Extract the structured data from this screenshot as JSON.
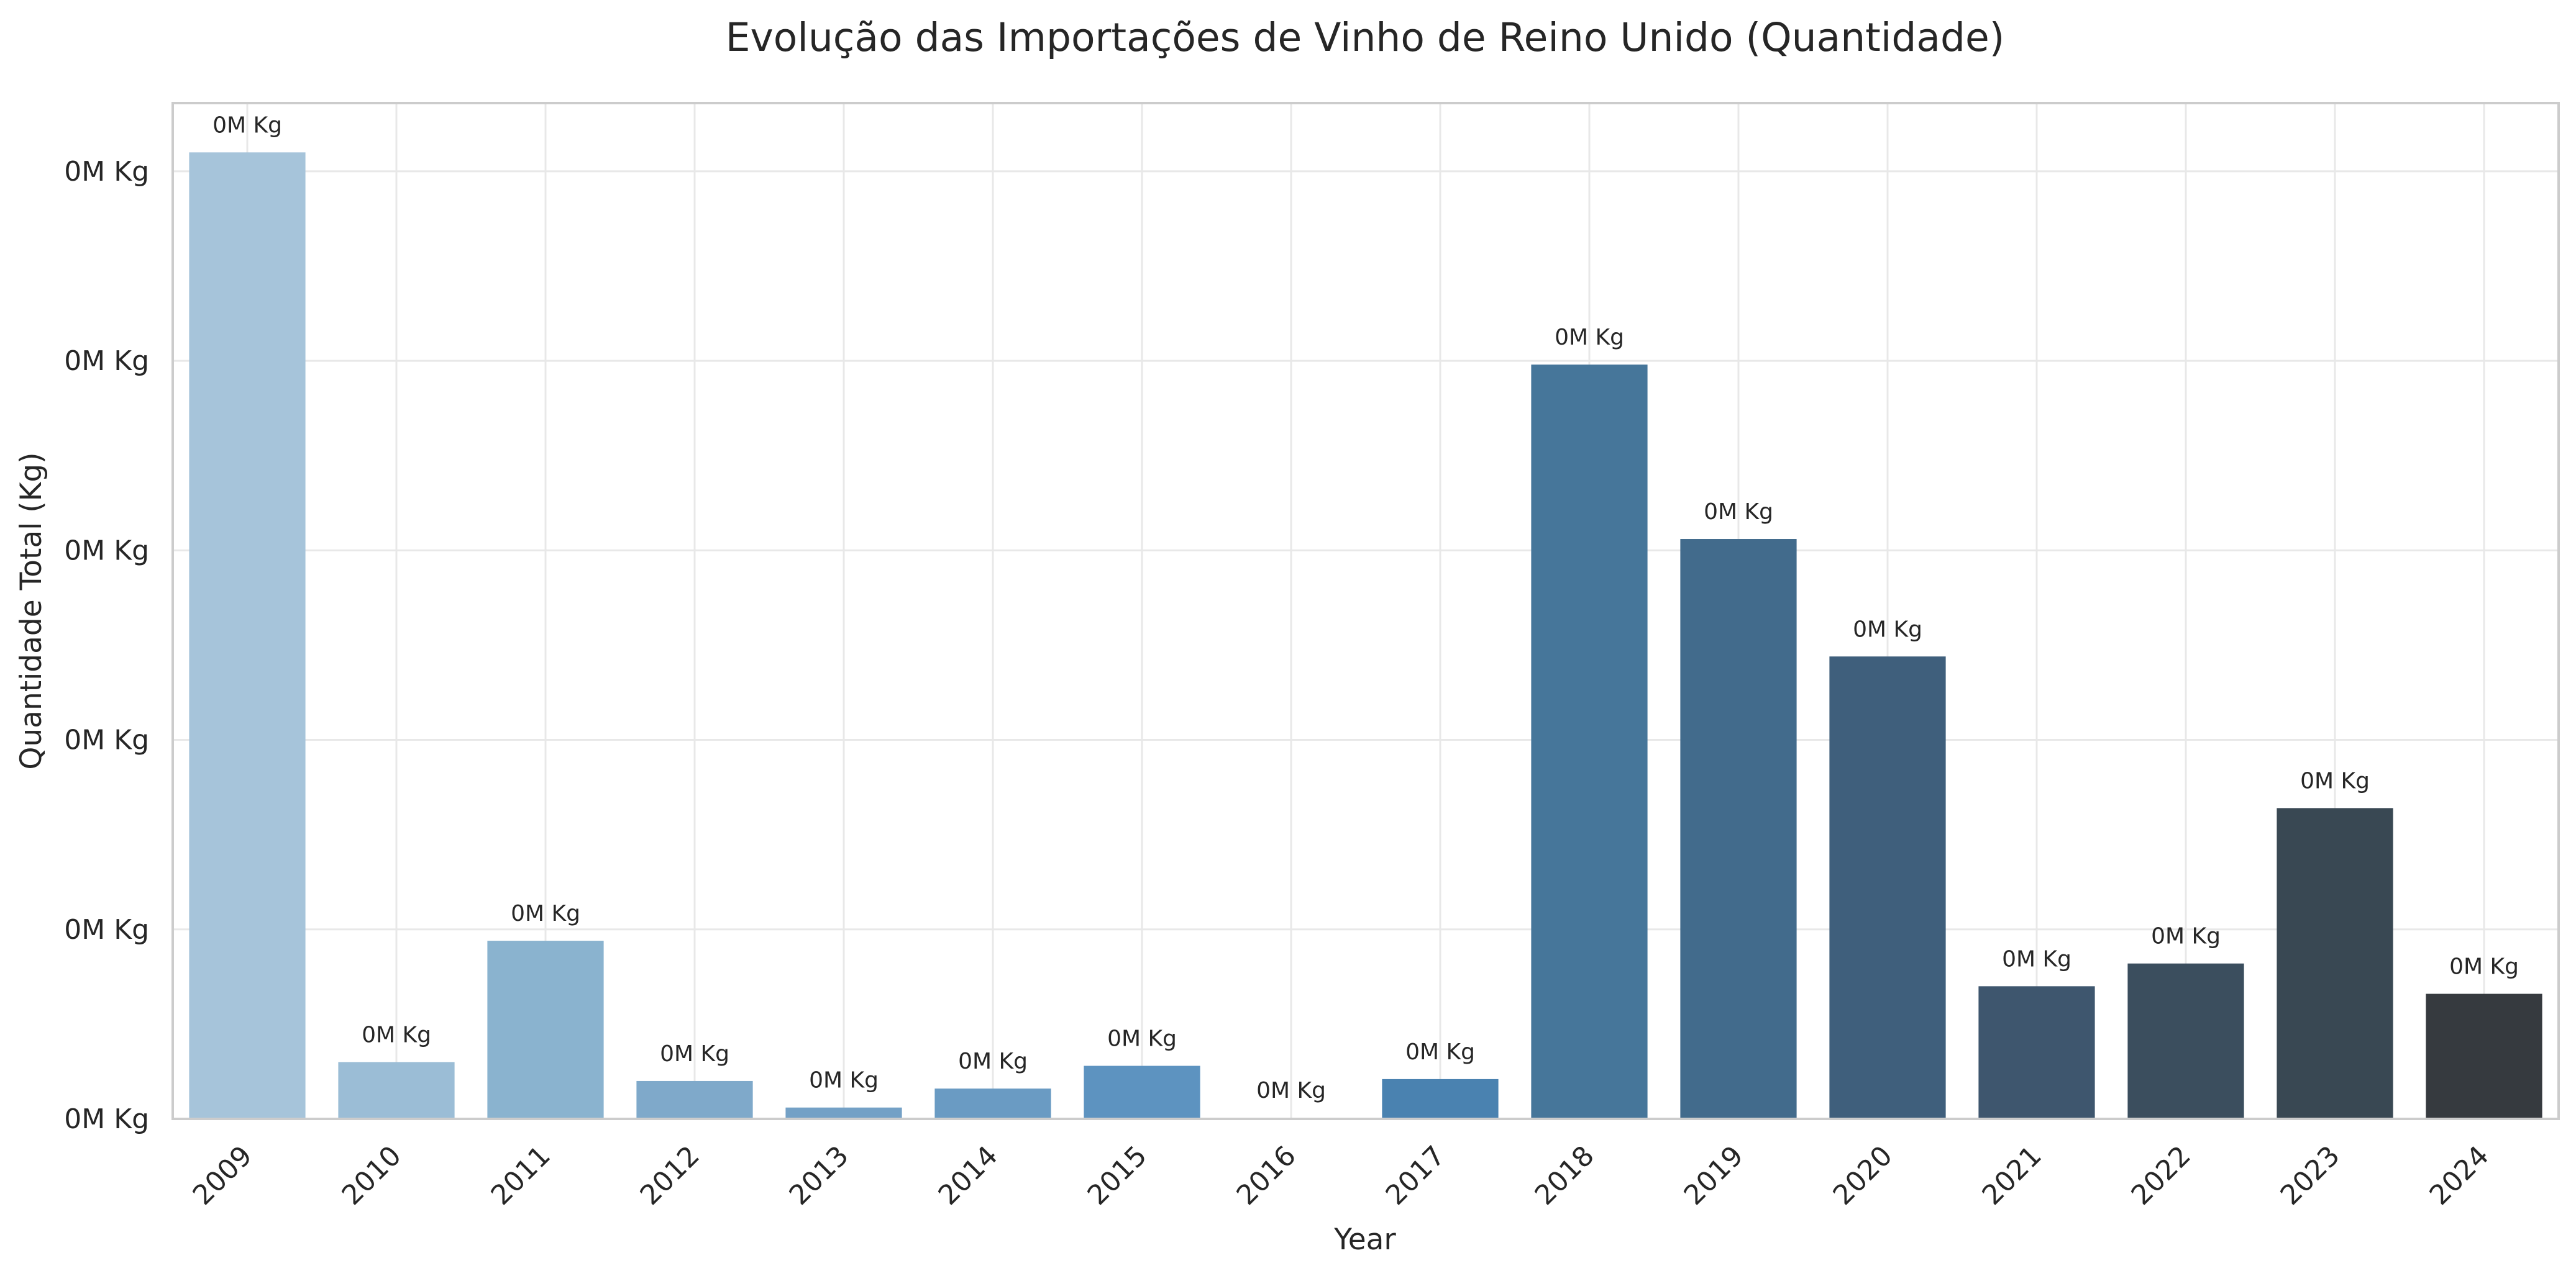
{
  "chart_data": {
    "type": "bar",
    "title": "Evolução das Importações de Vinho de Reino Unido (Quantidade)",
    "xlabel": "Year",
    "ylabel": "Quantidade Total (Kg)",
    "categories": [
      "2009",
      "2010",
      "2011",
      "2012",
      "2013",
      "2014",
      "2015",
      "2016",
      "2017",
      "2018",
      "2019",
      "2020",
      "2021",
      "2022",
      "2023",
      "2024"
    ],
    "values": [
      255,
      15,
      47,
      10,
      3,
      8,
      14,
      0.3,
      10.5,
      199,
      153,
      122,
      35,
      41,
      82,
      33
    ],
    "value_labels": [
      "0M Kg",
      "0M Kg",
      "0M Kg",
      "0M Kg",
      "0M Kg",
      "0M Kg",
      "0M Kg",
      "0M Kg",
      "0M Kg",
      "0M Kg",
      "0M Kg",
      "0M Kg",
      "0M Kg",
      "0M Kg",
      "0M Kg",
      "0M Kg"
    ],
    "ylim": [
      0,
      268
    ],
    "y_tick_values": [
      0,
      50,
      100,
      150,
      200,
      250
    ],
    "y_tick_labels": [
      "0M Kg",
      "0M Kg",
      "0M Kg",
      "0M Kg",
      "0M Kg",
      "0M Kg"
    ],
    "grid": true,
    "legend": "none",
    "colors": [
      "#a6c4da",
      "#9bbdd6",
      "#8ab3cf",
      "#7fa9ca",
      "#74a1c6",
      "#6a9bc3",
      "#5d93c0",
      "#5089b6",
      "#4a82b0",
      "#46769a",
      "#426b8c",
      "#3f5f7c",
      "#3e566e",
      "#3b4e5e",
      "#394853",
      "#363a3f"
    ]
  }
}
